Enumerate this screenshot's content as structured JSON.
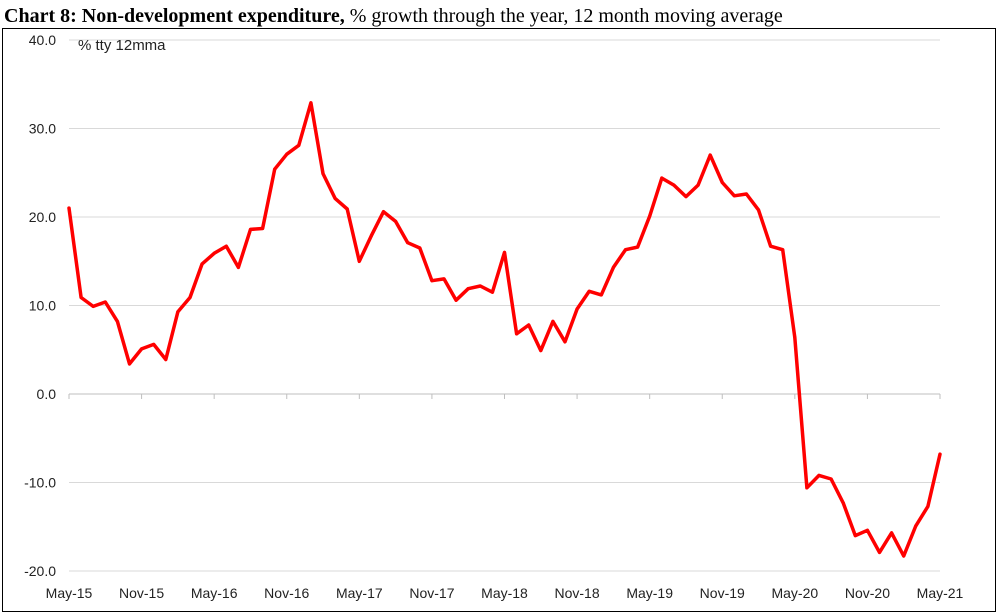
{
  "chart_data": {
    "type": "line",
    "title_bold": "Chart 8: Non-development expenditure,",
    "title_rest": " % growth through the year, 12 month moving average",
    "unit_label": "% tty 12mma",
    "ylim": [
      -20,
      40
    ],
    "y_ticks": [
      "40.0",
      "30.0",
      "20.0",
      "10.0",
      "0.0",
      "-10.0",
      "-20.0"
    ],
    "x_tick_labels": [
      "May-15",
      "Nov-15",
      "May-16",
      "Nov-16",
      "May-17",
      "Nov-17",
      "May-18",
      "Nov-18",
      "May-19",
      "Nov-19",
      "May-20",
      "Nov-20",
      "May-21"
    ],
    "grid": "horizontal",
    "line_color": "#ff0000",
    "series": [
      {
        "values": [
          21.0,
          10.9,
          9.9,
          10.4,
          8.2,
          3.4,
          5.1,
          5.6,
          3.9,
          9.3,
          10.9,
          14.7,
          15.9,
          16.7,
          14.3,
          18.6,
          18.7,
          25.4,
          27.1,
          28.1,
          32.9,
          24.9,
          22.1,
          20.9,
          15.0,
          17.9,
          20.6,
          19.5,
          17.1,
          16.5,
          12.8,
          13.0,
          10.6,
          11.9,
          12.2,
          11.5,
          16.0,
          6.8,
          7.8,
          4.9,
          8.2,
          5.9,
          9.6,
          11.6,
          11.2,
          14.3,
          16.3,
          16.6,
          20.1,
          24.4,
          23.6,
          22.3,
          23.6,
          27.0,
          23.9,
          22.4,
          22.6,
          20.8,
          16.7,
          16.3,
          6.4,
          -10.6,
          -9.2,
          -9.6,
          -12.3,
          -16.0,
          -15.4,
          -17.9,
          -15.7,
          -18.3,
          -14.9,
          -12.7,
          -6.8
        ]
      }
    ]
  }
}
